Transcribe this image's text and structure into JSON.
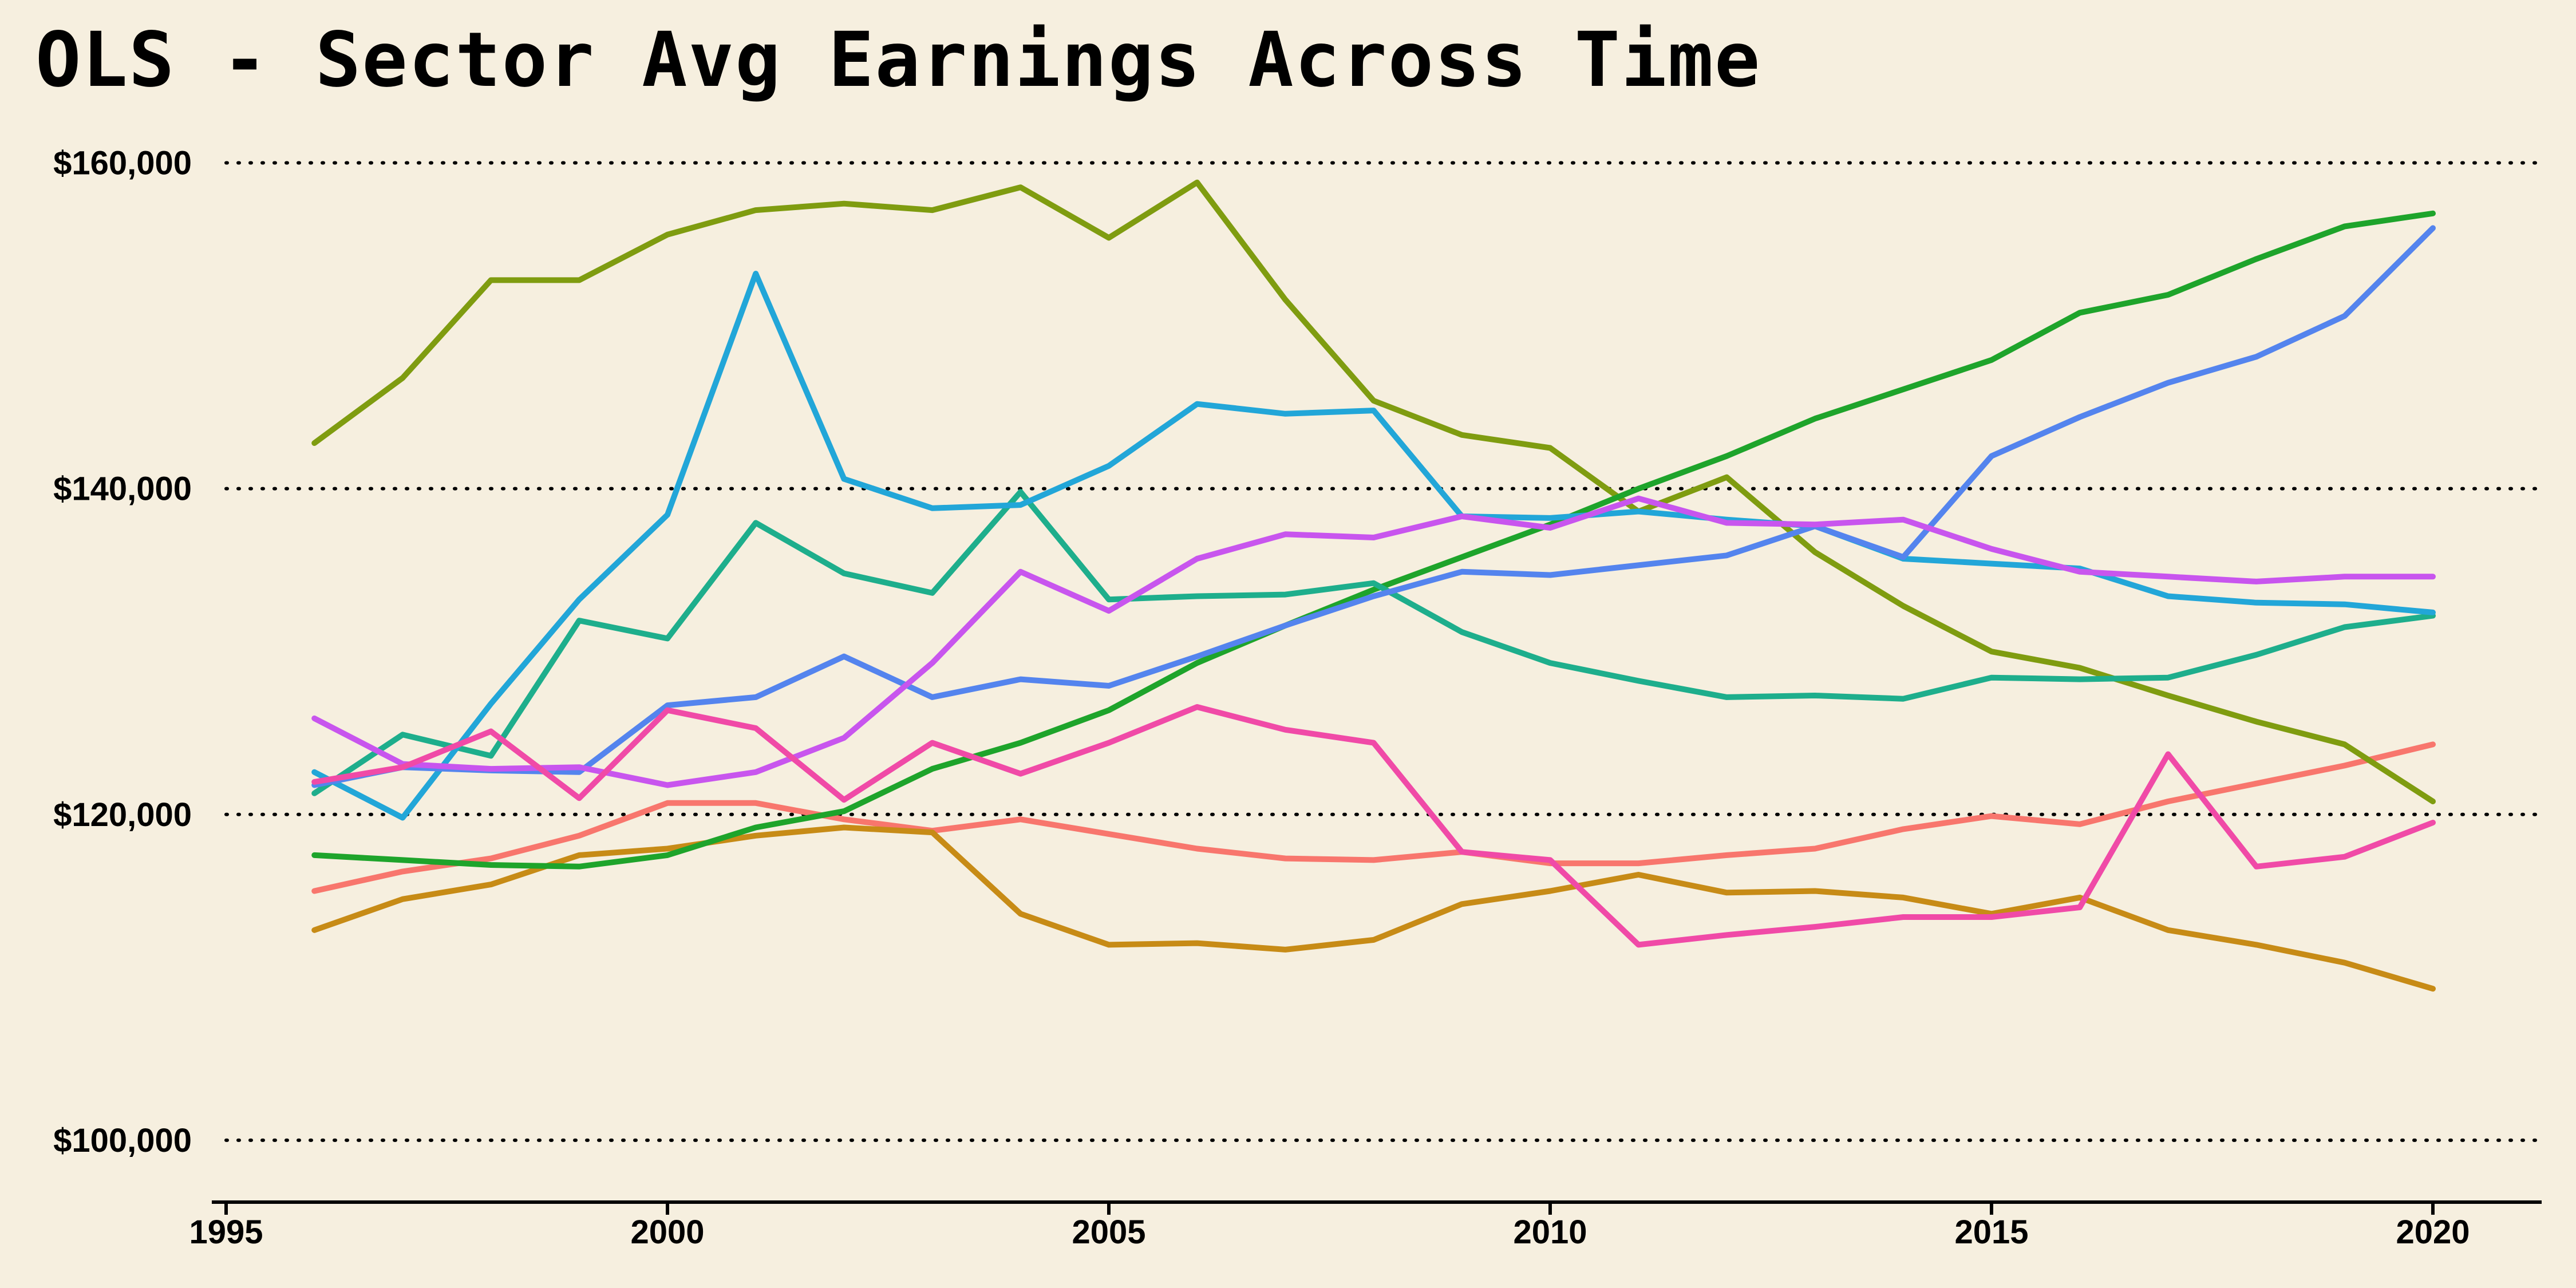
{
  "chart_data": {
    "type": "line",
    "title": "OLS - Sector Avg Earnings Across Time",
    "xlabel": "",
    "ylabel": "",
    "xlim": [
      1995,
      2021.2
    ],
    "ylim": [
      96200,
      170000
    ],
    "y_ticks": [
      100000,
      120000,
      140000,
      160000
    ],
    "y_tick_labels": [
      "$100,000",
      "$120,000",
      "$140,000",
      "$160,000"
    ],
    "x_ticks": [
      1995,
      2000,
      2005,
      2010,
      2015,
      2020
    ],
    "x_tick_labels": [
      "1995",
      "2000",
      "2005",
      "2010",
      "2015",
      "2020"
    ],
    "grid": "horizontal dotted",
    "legend": "none",
    "x": [
      1996,
      1997,
      1998,
      1999,
      2000,
      2001,
      2002,
      2003,
      2004,
      2005,
      2006,
      2007,
      2008,
      2009,
      2010,
      2011,
      2012,
      2013,
      2014,
      2015,
      2016,
      2017,
      2018,
      2019,
      2020
    ],
    "series": [
      {
        "color": "#f8766d",
        "values": [
          115300,
          116500,
          117300,
          118700,
          120700,
          120700,
          119700,
          119000,
          119700,
          118800,
          117900,
          117300,
          117200,
          117700,
          117000,
          117000,
          117500,
          117900,
          119100,
          119900,
          119400,
          120800,
          121900,
          123000,
          124300
        ]
      },
      {
        "color": "#c78b16",
        "values": [
          112900,
          114800,
          115700,
          117500,
          117900,
          118700,
          119200,
          118900,
          113900,
          112000,
          112100,
          111700,
          112300,
          114500,
          115300,
          116300,
          115200,
          115300,
          114900,
          113900,
          114900,
          112900,
          112000,
          110900,
          109300
        ]
      },
      {
        "color": "#7f9c10",
        "values": [
          142800,
          146800,
          152800,
          152800,
          155600,
          157100,
          157500,
          157100,
          158500,
          155400,
          158800,
          151600,
          145400,
          143300,
          142500,
          138600,
          140700,
          136100,
          132800,
          130000,
          129000,
          127300,
          125700,
          124300,
          120800
        ]
      },
      {
        "color": "#1ea42b",
        "values": [
          117500,
          117200,
          116900,
          116800,
          117500,
          119200,
          120200,
          122800,
          124400,
          126400,
          129300,
          131600,
          133800,
          135800,
          137800,
          140000,
          142000,
          144300,
          146100,
          147900,
          150800,
          151900,
          154100,
          156100,
          156900
        ]
      },
      {
        "color": "#1eae8c",
        "values": [
          121300,
          124900,
          123600,
          131900,
          130800,
          137900,
          134800,
          133600,
          139800,
          133200,
          133400,
          133500,
          134200,
          131200,
          129300,
          128200,
          127200,
          127300,
          127100,
          128400,
          128300,
          128400,
          129800,
          131500,
          132200
        ]
      },
      {
        "color": "#22a6d8",
        "values": [
          122600,
          119800,
          126800,
          133200,
          138400,
          153200,
          140600,
          138800,
          139000,
          141400,
          145200,
          144600,
          144800,
          138300,
          138200,
          138600,
          138100,
          137700,
          135700,
          135400,
          135100,
          133400,
          133000,
          132900,
          132400
        ]
      },
      {
        "color": "#5484ee",
        "values": [
          121800,
          122900,
          122700,
          122600,
          126700,
          127200,
          129700,
          127200,
          128300,
          127900,
          129700,
          131600,
          133400,
          134900,
          134700,
          135300,
          135900,
          137700,
          135800,
          142000,
          144400,
          146500,
          148100,
          150600,
          156000
        ]
      },
      {
        "color": "#c855ee",
        "values": [
          125900,
          123100,
          122800,
          122900,
          121800,
          122600,
          124700,
          129300,
          134900,
          132500,
          135700,
          137200,
          137000,
          138300,
          137600,
          139400,
          137900,
          137800,
          138100,
          136300,
          134900,
          134600,
          134300,
          134600,
          134600
        ]
      },
      {
        "color": "#f04aa7",
        "values": [
          122000,
          122900,
          125100,
          121000,
          126400,
          125300,
          120900,
          124400,
          122500,
          124400,
          126600,
          125200,
          124400,
          117700,
          117200,
          112000,
          112600,
          113100,
          113700,
          113700,
          114300,
          123700,
          116800,
          117400,
          119500
        ]
      }
    ]
  }
}
